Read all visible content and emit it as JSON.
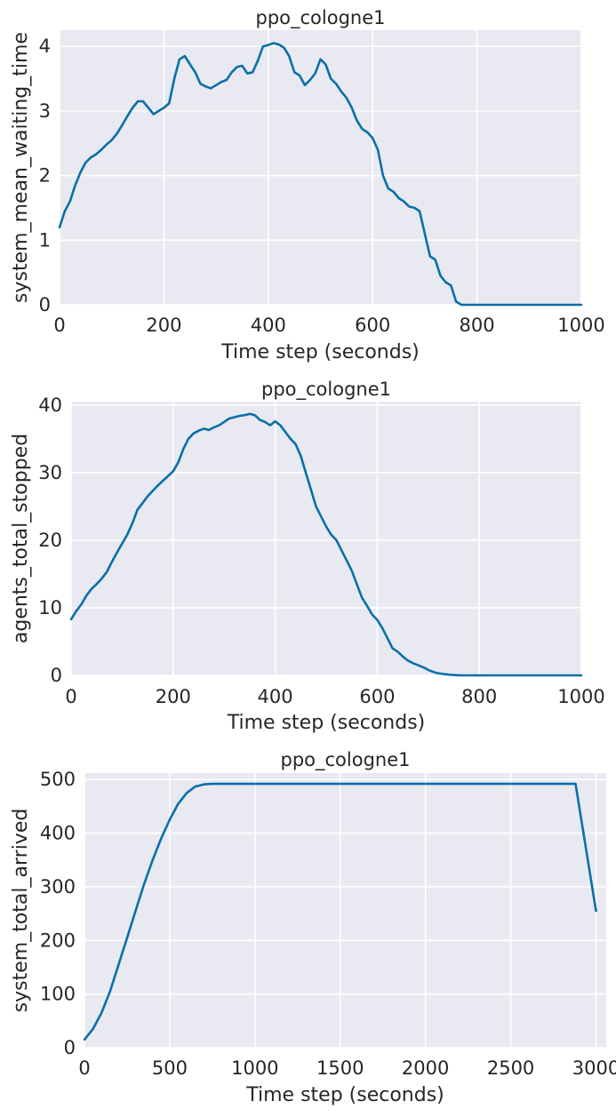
{
  "colors": {
    "line": "#0a6fa8",
    "plot_background": "#e8e9f1",
    "grid": "#ffffff",
    "text": "#262626"
  },
  "chart_data": [
    {
      "type": "line",
      "title": "ppo_cologne1",
      "xlabel": "Time step (seconds)",
      "ylabel": "system_mean_waiting_time",
      "xlim": [
        0,
        1000
      ],
      "ylim": [
        0,
        4.25
      ],
      "xticks": [
        0,
        200,
        400,
        600,
        800,
        1000
      ],
      "yticks": [
        0,
        1,
        2,
        3,
        4
      ],
      "grid": true,
      "series": [
        {
          "x": [
            0,
            10,
            20,
            30,
            40,
            50,
            60,
            70,
            80,
            90,
            100,
            110,
            120,
            130,
            140,
            150,
            160,
            170,
            180,
            190,
            200,
            210,
            220,
            230,
            240,
            250,
            260,
            270,
            280,
            290,
            300,
            310,
            320,
            330,
            340,
            350,
            360,
            370,
            380,
            390,
            400,
            410,
            420,
            430,
            440,
            450,
            460,
            470,
            480,
            490,
            500,
            510,
            520,
            530,
            540,
            550,
            560,
            570,
            580,
            590,
            600,
            610,
            620,
            630,
            640,
            650,
            660,
            670,
            680,
            690,
            700,
            710,
            720,
            730,
            740,
            750,
            760,
            770,
            780,
            790,
            800,
            850,
            900,
            950,
            1000
          ],
          "y": [
            1.2,
            1.45,
            1.6,
            1.85,
            2.05,
            2.2,
            2.28,
            2.33,
            2.4,
            2.48,
            2.55,
            2.65,
            2.78,
            2.92,
            3.05,
            3.15,
            3.15,
            3.05,
            2.95,
            3.0,
            3.05,
            3.12,
            3.5,
            3.8,
            3.85,
            3.72,
            3.6,
            3.42,
            3.38,
            3.35,
            3.4,
            3.45,
            3.48,
            3.6,
            3.68,
            3.7,
            3.58,
            3.6,
            3.78,
            4.0,
            4.02,
            4.05,
            4.03,
            3.98,
            3.85,
            3.6,
            3.55,
            3.4,
            3.48,
            3.58,
            3.8,
            3.72,
            3.5,
            3.42,
            3.3,
            3.2,
            3.05,
            2.85,
            2.72,
            2.67,
            2.58,
            2.4,
            2.0,
            1.8,
            1.75,
            1.65,
            1.6,
            1.52,
            1.5,
            1.45,
            1.1,
            0.75,
            0.7,
            0.45,
            0.35,
            0.3,
            0.05,
            0.0,
            0.0,
            0.0,
            0.0,
            0.0,
            0.0,
            0.0,
            0.0
          ]
        }
      ]
    },
    {
      "type": "line",
      "title": "ppo_cologne1",
      "xlabel": "Time step (seconds)",
      "ylabel": "agents_total_stopped",
      "xlim": [
        0,
        1000
      ],
      "ylim": [
        0,
        40.5
      ],
      "xticks": [
        0,
        200,
        400,
        600,
        800,
        1000
      ],
      "yticks": [
        0,
        10,
        20,
        30,
        40
      ],
      "grid": true,
      "series": [
        {
          "x": [
            0,
            10,
            20,
            30,
            40,
            50,
            60,
            70,
            80,
            90,
            100,
            110,
            120,
            130,
            140,
            150,
            160,
            170,
            180,
            190,
            200,
            210,
            220,
            230,
            240,
            250,
            260,
            270,
            280,
            290,
            300,
            310,
            320,
            330,
            340,
            350,
            360,
            370,
            380,
            390,
            400,
            410,
            420,
            430,
            440,
            450,
            460,
            470,
            480,
            490,
            500,
            510,
            520,
            530,
            540,
            550,
            560,
            570,
            580,
            590,
            600,
            610,
            620,
            630,
            640,
            650,
            660,
            670,
            680,
            690,
            700,
            710,
            720,
            730,
            740,
            750,
            760,
            770,
            780,
            800,
            850,
            900,
            950,
            1000
          ],
          "y": [
            8.3,
            9.5,
            10.5,
            11.8,
            12.8,
            13.5,
            14.3,
            15.3,
            16.8,
            18.2,
            19.5,
            20.8,
            22.5,
            24.5,
            25.5,
            26.5,
            27.3,
            28.1,
            28.8,
            29.5,
            30.2,
            31.5,
            33.5,
            35.0,
            35.8,
            36.2,
            36.5,
            36.3,
            36.7,
            37.0,
            37.5,
            38.0,
            38.2,
            38.4,
            38.5,
            38.7,
            38.5,
            37.8,
            37.5,
            37.0,
            37.6,
            37.0,
            36.0,
            35.0,
            34.2,
            32.5,
            30.0,
            27.5,
            25.0,
            23.5,
            22.0,
            20.8,
            20.0,
            18.5,
            17.0,
            15.5,
            13.5,
            11.5,
            10.3,
            9.0,
            8.2,
            7.0,
            5.5,
            4.0,
            3.5,
            2.8,
            2.2,
            1.8,
            1.5,
            1.2,
            0.8,
            0.5,
            0.3,
            0.2,
            0.1,
            0.05,
            0.0,
            0.0,
            0.0,
            0.0,
            0.0,
            0.0,
            0.0,
            0.0
          ]
        }
      ]
    },
    {
      "type": "line",
      "title": "ppo_cologne1",
      "xlabel": "Time step (seconds)",
      "ylabel": "system_total_arrived",
      "xlim": [
        0,
        3060
      ],
      "ylim": [
        0,
        512
      ],
      "xticks": [
        0,
        500,
        1000,
        1500,
        2000,
        2500,
        3000
      ],
      "yticks": [
        0,
        100,
        200,
        300,
        400,
        500
      ],
      "grid": true,
      "series": [
        {
          "x": [
            0,
            50,
            100,
            150,
            200,
            250,
            300,
            350,
            400,
            450,
            500,
            550,
            600,
            650,
            700,
            750,
            800,
            1000,
            1500,
            2000,
            2500,
            2880,
            3000
          ],
          "y": [
            15,
            35,
            65,
            105,
            155,
            205,
            255,
            305,
            350,
            390,
            425,
            455,
            475,
            487,
            491,
            492,
            492,
            492,
            492,
            492,
            492,
            492,
            255
          ]
        }
      ]
    }
  ]
}
